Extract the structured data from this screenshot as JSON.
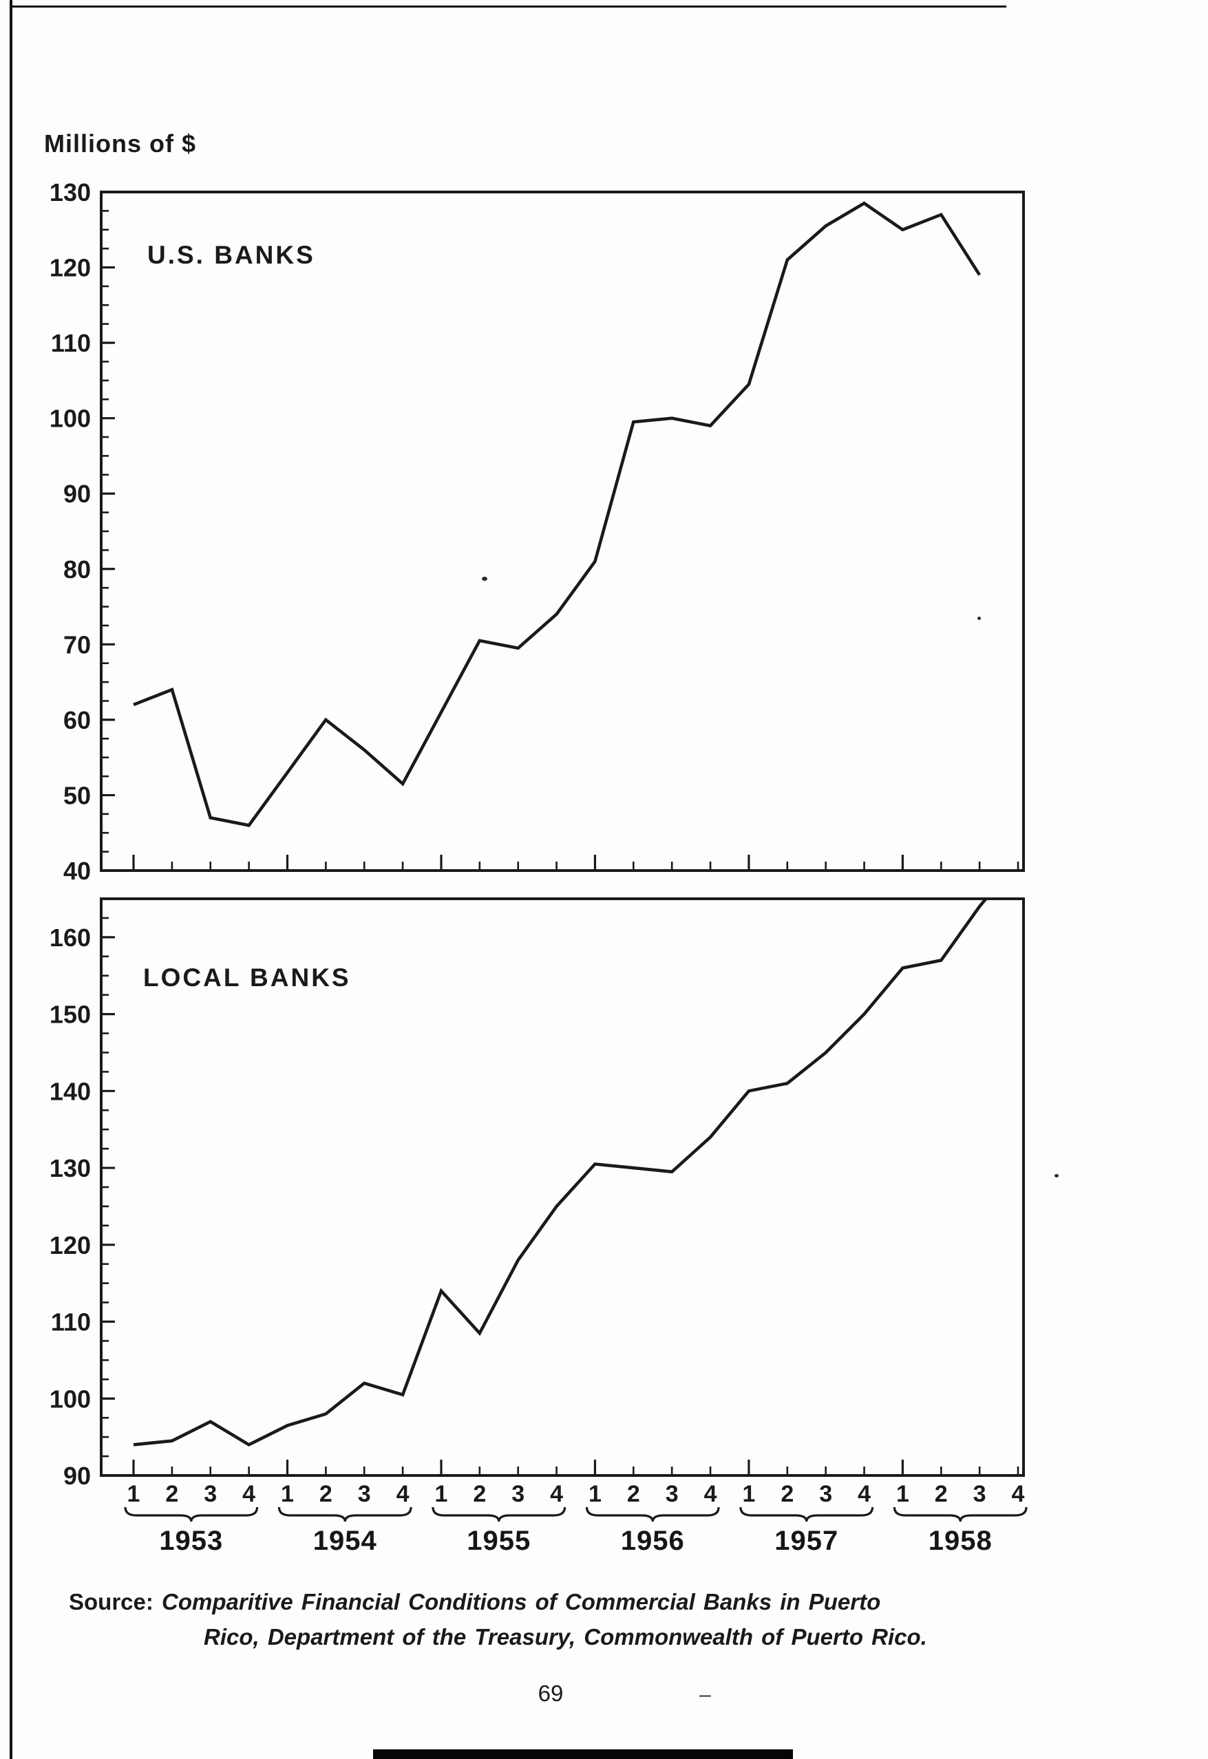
{
  "theme": {
    "ink": "#1a1a1a",
    "paper": "#fdfdfb"
  },
  "chart_data": [
    {
      "type": "line",
      "title": "U.S. BANKS",
      "ylabel": "Millions of $",
      "ylim": [
        40,
        130
      ],
      "yticks": [
        40,
        50,
        60,
        70,
        80,
        90,
        100,
        110,
        120,
        130
      ],
      "y_minor_step": 2.5,
      "categories": [
        "1953 Q1",
        "1953 Q2",
        "1953 Q3",
        "1953 Q4",
        "1954 Q1",
        "1954 Q2",
        "1954 Q3",
        "1954 Q4",
        "1955 Q1",
        "1955 Q2",
        "1955 Q3",
        "1955 Q4",
        "1956 Q1",
        "1956 Q2",
        "1956 Q3",
        "1956 Q4",
        "1957 Q1",
        "1957 Q2",
        "1957 Q3",
        "1957 Q4",
        "1958 Q1",
        "1958 Q2",
        "1958 Q3"
      ],
      "values": [
        62,
        64,
        47,
        46,
        53,
        60,
        56,
        51.5,
        61,
        70.5,
        69.5,
        74,
        81,
        99.5,
        100,
        99,
        104.5,
        121,
        125.5,
        128.5,
        125,
        127,
        119
      ]
    },
    {
      "type": "line",
      "title": "LOCAL BANKS",
      "ylabel": "Millions of $",
      "ylim": [
        90,
        165
      ],
      "yticks": [
        90,
        100,
        110,
        120,
        130,
        140,
        150,
        160
      ],
      "y_minor_step": 2.5,
      "categories": [
        "1953 Q1",
        "1953 Q2",
        "1953 Q3",
        "1953 Q4",
        "1954 Q1",
        "1954 Q2",
        "1954 Q3",
        "1954 Q4",
        "1955 Q1",
        "1955 Q2",
        "1955 Q3",
        "1955 Q4",
        "1956 Q1",
        "1956 Q2",
        "1956 Q3",
        "1956 Q4",
        "1957 Q1",
        "1957 Q2",
        "1957 Q3",
        "1957 Q4",
        "1958 Q1",
        "1958 Q2",
        "1958 Q3",
        "1958 Q4"
      ],
      "values": [
        94,
        94.5,
        97,
        94,
        96.5,
        98,
        102,
        100.5,
        114,
        108.5,
        118,
        125,
        130.5,
        130,
        129.5,
        134,
        140,
        141,
        145,
        150,
        156,
        157,
        164,
        170
      ]
    }
  ],
  "x_axis": {
    "quarter_labels": [
      "1",
      "2",
      "3",
      "4"
    ],
    "years": [
      "1953",
      "1954",
      "1955",
      "1956",
      "1957",
      "1958"
    ]
  },
  "source": {
    "label": "Source:",
    "line1": "Comparitive Financial Conditions of Commercial Banks in Puerto",
    "line2": "Rico, Department of the Treasury, Commonwealth of Puerto Rico."
  },
  "footer": {
    "page_number": "69",
    "stray_mark": "–"
  }
}
